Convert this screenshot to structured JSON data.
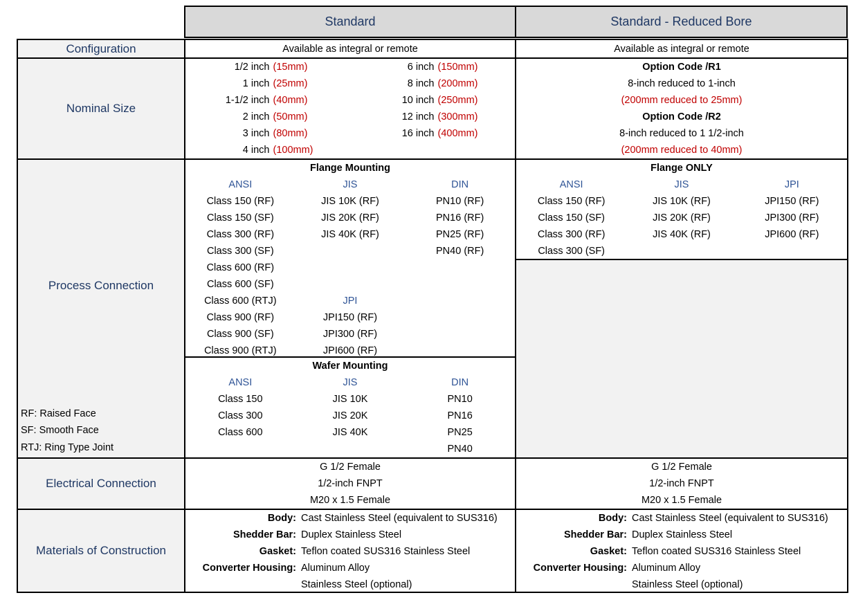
{
  "colors": {
    "navy_label": "#1F3864",
    "blue_subheader": "#2F5496",
    "red_mm": "#C00000",
    "header_bg": "#D9D9D9",
    "label_bg": "#F2F2F2",
    "border": "#000000"
  },
  "headers": {
    "standard": "Standard",
    "reduced_bore": "Standard -  Reduced Bore"
  },
  "rows": {
    "configuration": {
      "label": "Configuration",
      "standard": "Available as integral or remote",
      "reduced": "Available as integral or remote"
    },
    "nominal_size": {
      "label": "Nominal Size",
      "standard": {
        "col1": [
          {
            "size": "1/2 inch",
            "mm": "(15mm)"
          },
          {
            "size": "1 inch",
            "mm": "(25mm)"
          },
          {
            "size": "1-1/2 inch",
            "mm": "(40mm)"
          },
          {
            "size": "2 inch",
            "mm": "(50mm)"
          },
          {
            "size": "3 inch",
            "mm": "(80mm)"
          },
          {
            "size": "4 inch",
            "mm": "(100mm)"
          }
        ],
        "col2": [
          {
            "size": "6 inch",
            "mm": "(150mm)"
          },
          {
            "size": "8 inch",
            "mm": "(200mm)"
          },
          {
            "size": "10 inch",
            "mm": "(250mm)"
          },
          {
            "size": "12 inch",
            "mm": "(300mm)"
          },
          {
            "size": "16 inch",
            "mm": "(400mm)"
          }
        ]
      },
      "reduced": {
        "lines": [
          {
            "text": "Option Code /R1",
            "style": "bold"
          },
          {
            "text": "8-inch reduced to 1-inch",
            "style": "plain"
          },
          {
            "text": "(200mm reduced to 25mm)",
            "style": "red"
          },
          {
            "text": "Option Code /R2",
            "style": "bold"
          },
          {
            "text": "8-inch reduced to 1 1/2-inch",
            "style": "plain"
          },
          {
            "text": "(200mm reduced to 40mm)",
            "style": "red"
          }
        ]
      }
    },
    "process_connection": {
      "label": "Process Connection",
      "notes": [
        "RF: Raised Face",
        "SF: Smooth Face",
        "RTJ: Ring Type Joint"
      ],
      "standard_flange": {
        "title": "Flange Mounting",
        "columns": [
          {
            "header": "ANSI",
            "items": [
              "Class 150 (RF)",
              "Class 150 (SF)",
              "Class 300 (RF)",
              "Class 300 (SF)",
              "Class 600 (RF)",
              "Class 600 (SF)",
              "Class 600 (RTJ)",
              "Class 900 (RF)",
              "Class 900 (SF)",
              "Class 900 (RTJ)"
            ]
          },
          {
            "header": "JIS",
            "items": [
              "JIS 10K (RF)",
              "JIS 20K (RF)",
              "JIS 40K (RF)",
              "",
              "",
              "",
              "JPI",
              "JPI150 (RF)",
              "JPI300 (RF)",
              "JPI600 (RF)"
            ]
          },
          {
            "header": "DIN",
            "items": [
              "PN10 (RF)",
              "PN16 (RF)",
              "PN25 (RF)",
              "PN40 (RF)"
            ]
          }
        ]
      },
      "standard_wafer": {
        "title": "Wafer Mounting",
        "columns": [
          {
            "header": "ANSI",
            "items": [
              "Class 150",
              "Class 300",
              "Class 600"
            ]
          },
          {
            "header": "JIS",
            "items": [
              "JIS 10K",
              "JIS 20K",
              "JIS 40K"
            ]
          },
          {
            "header": "DIN",
            "items": [
              "PN10",
              "PN16",
              "PN25",
              "PN40"
            ]
          }
        ]
      },
      "reduced_flange": {
        "title": "Flange ONLY",
        "columns": [
          {
            "header": "ANSI",
            "items": [
              "Class 150 (RF)",
              "Class 150 (SF)",
              "Class 300 (RF)",
              "Class 300 (SF)"
            ]
          },
          {
            "header": "JIS",
            "items": [
              "JIS 10K (RF)",
              "JIS 20K (RF)",
              "JIS 40K (RF)"
            ]
          },
          {
            "header": "JPI",
            "items": [
              "JPI150 (RF)",
              "JPI300 (RF)",
              "JPI600 (RF)"
            ]
          }
        ]
      }
    },
    "electrical_connection": {
      "label": "Electrical Connection",
      "standard": [
        "G 1/2 Female",
        "1/2-inch FNPT",
        "M20 x 1.5 Female"
      ],
      "reduced": [
        "G 1/2 Female",
        "1/2-inch FNPT",
        "M20 x 1.5 Female"
      ]
    },
    "materials": {
      "label": "Materials of Construction",
      "standard": [
        {
          "name": "Body:",
          "value": "Cast Stainless Steel (equivalent to SUS316)"
        },
        {
          "name": "Shedder Bar:",
          "value": "Duplex Stainless Steel"
        },
        {
          "name": "Gasket:",
          "value": "Teflon coated SUS316 Stainless Steel"
        },
        {
          "name": "Converter Housing:",
          "value": "Aluminum Alloy"
        },
        {
          "name": "",
          "value": "Stainless Steel (optional)"
        }
      ],
      "reduced": [
        {
          "name": "Body:",
          "value": "Cast Stainless Steel (equivalent to SUS316)"
        },
        {
          "name": "Shedder Bar:",
          "value": "Duplex Stainless Steel"
        },
        {
          "name": "Gasket:",
          "value": "Teflon coated SUS316 Stainless Steel"
        },
        {
          "name": "Converter Housing:",
          "value": "Aluminum Alloy"
        },
        {
          "name": "",
          "value": "Stainless Steel (optional)"
        }
      ]
    }
  }
}
